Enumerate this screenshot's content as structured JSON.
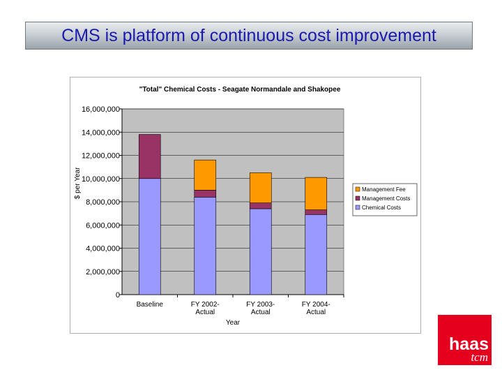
{
  "slide": {
    "title": "CMS is platform of continuous cost improvement"
  },
  "logo": {
    "line1": "haas",
    "line2": "tcm",
    "color": "#e5001e"
  },
  "chart_data": {
    "type": "bar",
    "stacked": true,
    "title": "\"Total\" Chemical Costs - Seagate Normandale and Shakopee",
    "xlabel": "Year",
    "ylabel": "$ per Year",
    "categories": [
      [
        "Baseline"
      ],
      [
        "FY 2002-",
        "Actual"
      ],
      [
        "FY 2003-",
        "Actual"
      ],
      [
        "FY 2004-",
        "Actual"
      ]
    ],
    "ylim": [
      0,
      16000000
    ],
    "yticks": [
      0,
      2000000,
      4000000,
      6000000,
      8000000,
      10000000,
      12000000,
      14000000,
      16000000
    ],
    "ytick_labels": [
      "0",
      "2,000,000",
      "4,000,000",
      "6,000,000",
      "8,000,000",
      "10,000,000",
      "12,000,000",
      "14,000,000",
      "16,000,000"
    ],
    "grid": true,
    "plot_background": "#c0c0c0",
    "legend_position": "right",
    "series": [
      {
        "name": "Chemical Costs",
        "color": "#9999ff",
        "values": [
          10000000,
          8400000,
          7400000,
          6900000
        ]
      },
      {
        "name": "Management Costs",
        "color": "#993366",
        "values": [
          3800000,
          600000,
          500000,
          400000
        ]
      },
      {
        "name": "Management Fee",
        "color": "#ff9900",
        "values": [
          0,
          2600000,
          2600000,
          2800000
        ]
      }
    ],
    "legend_order": [
      "Management Fee",
      "Management Costs",
      "Chemical Costs"
    ]
  }
}
